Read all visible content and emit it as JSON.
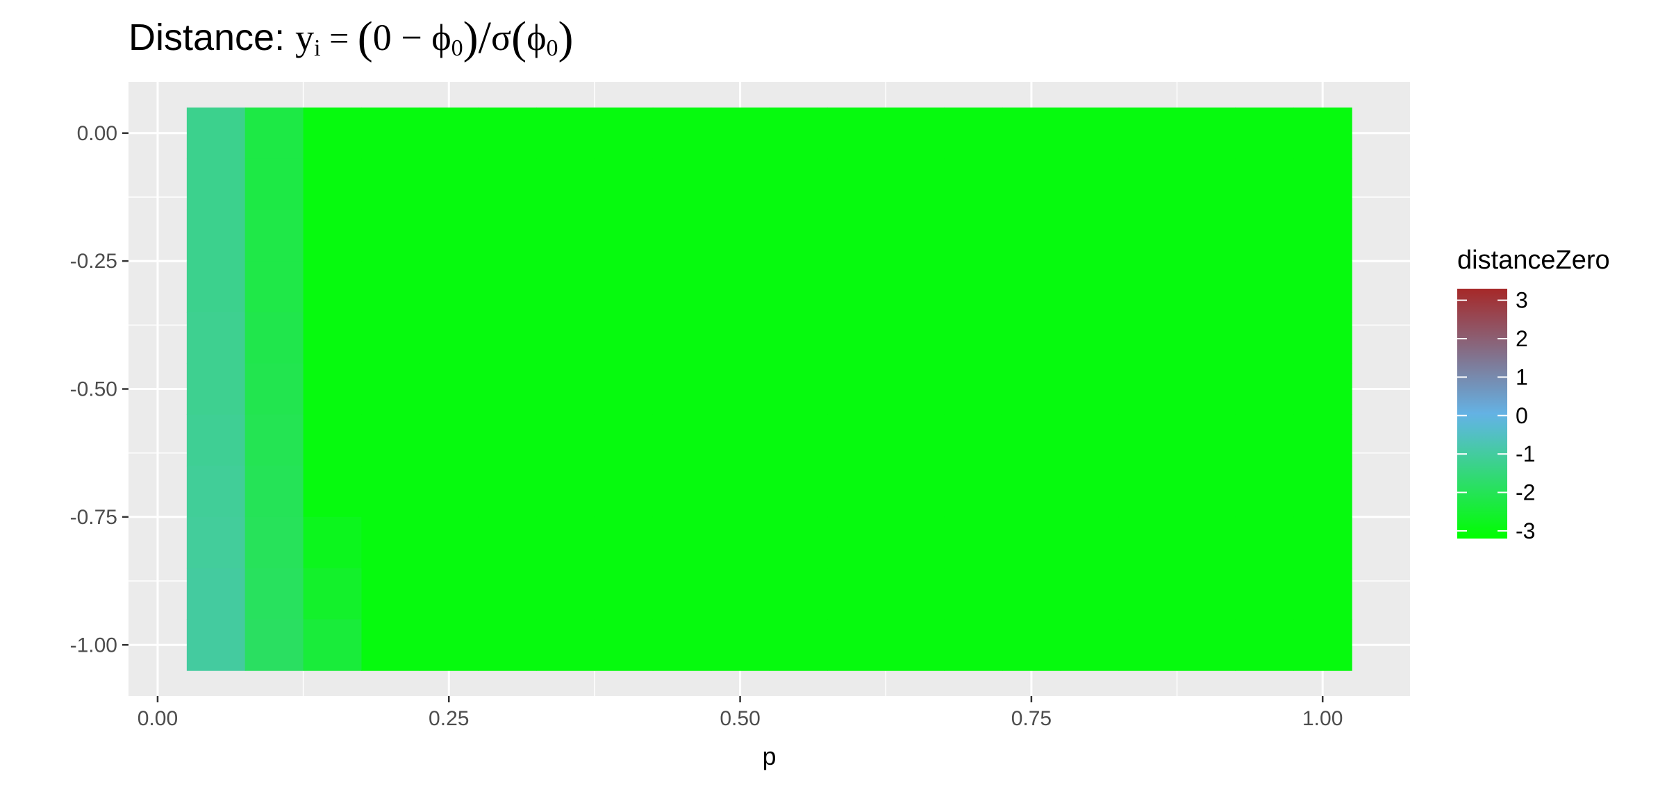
{
  "chart_data": {
    "type": "heatmap",
    "title": {
      "prefix": "Distance: ",
      "y": "y",
      "y_sub": "i",
      "eq": " = ",
      "lparen": "(",
      "zero_minus": "0 − ",
      "phi": "ϕ",
      "phi_sub": "0",
      "rparen": ")",
      "slash": "/",
      "sigma": "σ",
      "lparen2": "(",
      "rparen2": ")"
    },
    "xlabel": "p",
    "ylabel": "",
    "x_ticks": [
      "0.00",
      "0.25",
      "0.50",
      "0.75",
      "1.00"
    ],
    "y_ticks": [
      "0.00",
      "-0.25",
      "-0.50",
      "-0.75",
      "-1.00"
    ],
    "x_tick_values": [
      0,
      0.25,
      0.5,
      0.75,
      1.0
    ],
    "y_tick_values": [
      0,
      -0.25,
      -0.5,
      -0.75,
      -1.0
    ],
    "xlim": [
      -0.025,
      1.075
    ],
    "ylim": [
      -1.1,
      0.1
    ],
    "grid": true,
    "x_values": [
      0.05,
      0.1,
      0.15,
      0.2,
      0.25,
      0.3,
      0.35,
      0.4,
      0.45,
      0.5,
      0.55,
      0.6,
      0.65,
      0.7,
      0.75,
      0.8,
      0.85,
      0.9,
      0.95,
      1.0
    ],
    "y_values": [
      0,
      -0.1,
      -0.2,
      -0.3,
      -0.4,
      -0.5,
      -0.6,
      -0.7,
      -0.8,
      -0.9,
      -1.0
    ],
    "column_values": [
      [
        -1.25,
        -1.25,
        -1.25,
        -1.25,
        -1.2,
        -1.2,
        -1.15,
        -1.1,
        -1.05,
        -1.0,
        -1.0
      ],
      [
        -2.25,
        -2.25,
        -2.2,
        -2.2,
        -2.15,
        -2.1,
        -2.05,
        -2.0,
        -1.95,
        -1.9,
        -1.85
      ],
      [
        -3.0,
        -3.0,
        -3.0,
        -3.0,
        -3.0,
        -3.0,
        -3.0,
        -3.0,
        -2.8,
        -2.6,
        -2.4
      ]
    ],
    "default_value": -3.0,
    "legend": {
      "title": "distanceZero",
      "position": "right",
      "labels": [
        "3",
        "2",
        "1",
        "0",
        "-1",
        "-2",
        "-3"
      ],
      "values": [
        3,
        2,
        1,
        0,
        -1,
        -2,
        -3
      ],
      "range": [
        -3.2,
        3.3
      ]
    },
    "colors": {
      "low": "#00ff00",
      "mid": "#63b4e7",
      "high": "#a62828",
      "panel": "#ebebeb",
      "grid": "#ffffff",
      "tick_text": "#4d4d4d"
    }
  }
}
